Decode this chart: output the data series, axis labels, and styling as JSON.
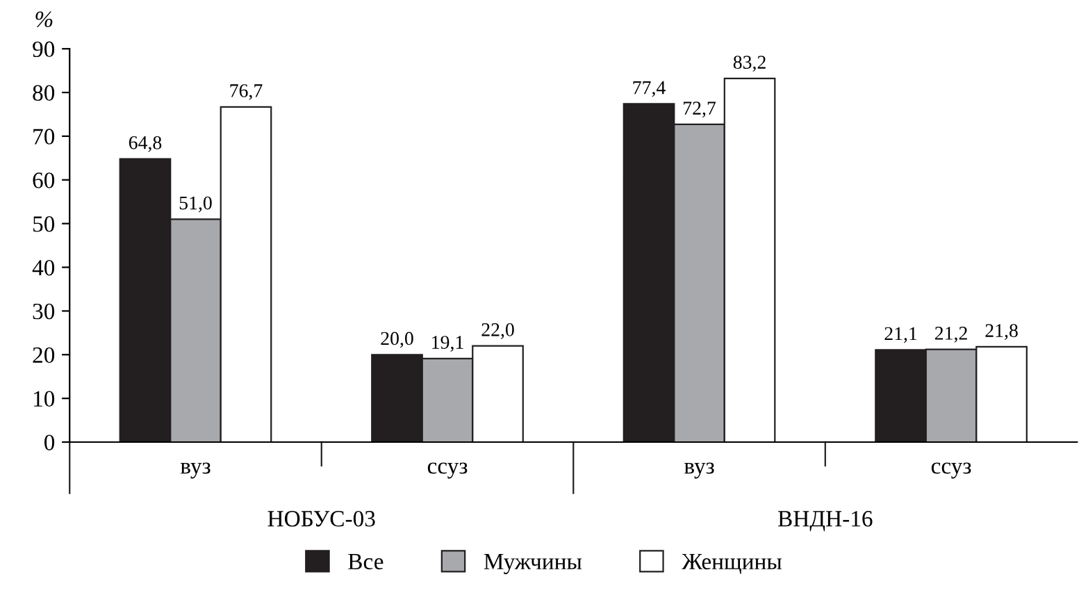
{
  "chart_data": {
    "type": "bar",
    "ylabel": "%",
    "categories": [
      "вуз",
      "ссуз",
      "вуз",
      "ссуз"
    ],
    "annotations": [
      "НОБУС-03",
      "ВНДН-16"
    ],
    "series": [
      {
        "name": "Все",
        "color": "#231f20",
        "values": [
          64.8,
          20.0,
          77.4,
          21.1
        ],
        "value_labels": [
          "64,8",
          "20,0",
          "77,4",
          "21,1"
        ]
      },
      {
        "name": "Мужчины",
        "color": "#a7a9ac",
        "values": [
          51.0,
          19.1,
          72.7,
          21.2
        ],
        "value_labels": [
          "51,0",
          "19,1",
          "72,7",
          "21,2"
        ]
      },
      {
        "name": "Женщины",
        "color": "#ffffff",
        "values": [
          76.7,
          22.0,
          83.2,
          21.8
        ],
        "value_labels": [
          "76,7",
          "22,0",
          "83,2",
          "21,8"
        ]
      }
    ],
    "ylim": [
      0,
      90
    ],
    "yticks": [
      0,
      10,
      20,
      30,
      40,
      50,
      60,
      70,
      80,
      90
    ],
    "grid": false,
    "legend": "bottom"
  }
}
